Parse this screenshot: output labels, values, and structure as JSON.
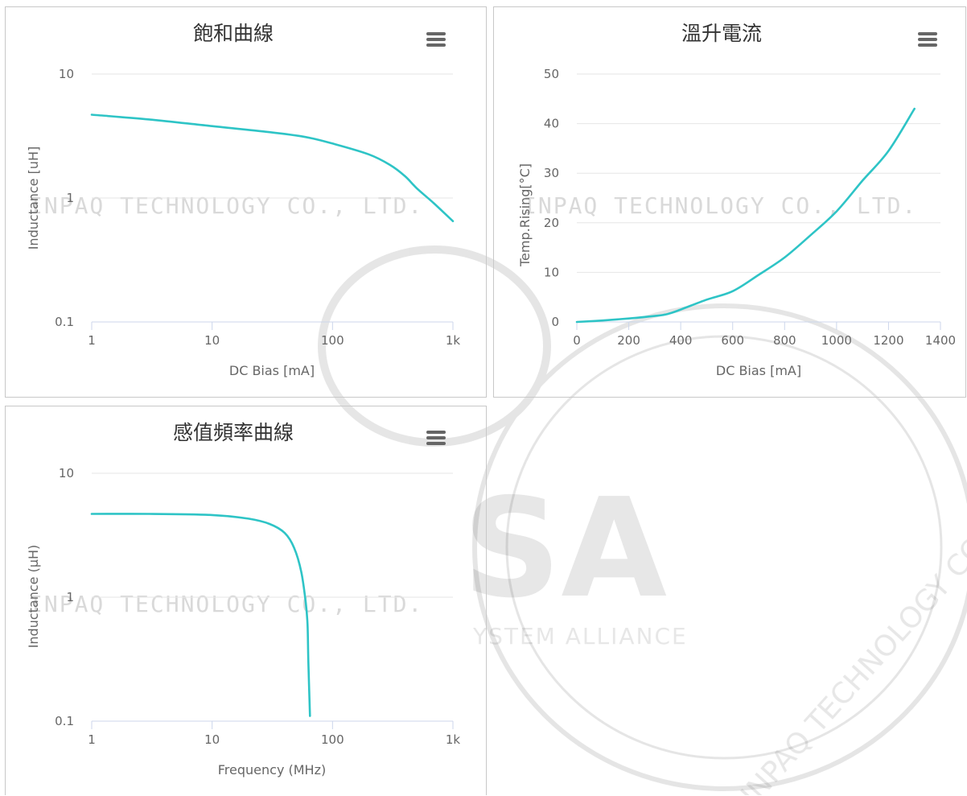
{
  "watermark": {
    "company": "INPAQ TECHNOLOGY CO., LTD.",
    "seal_text": "INPAQ TECHNOLOGY CO., LTD. ALL RIGHT RESERVED.",
    "alliance": "YSTEM ALLIANCE",
    "big_letters": "SA"
  },
  "colors": {
    "series": "#2ec4c6",
    "grid": "#e6e6e6",
    "axis": "#ccd6eb",
    "text": "#666666",
    "title": "#333333"
  },
  "menu_icon": "hamburger-menu-icon",
  "chart_data": [
    {
      "type": "line",
      "title": "飽和曲線",
      "xlabel": "DC Bias [mA]",
      "ylabel": "Inductance [uH]",
      "x_scale": "log",
      "y_scale": "log",
      "xlim": [
        1,
        1000
      ],
      "ylim": [
        0.1,
        10
      ],
      "x_ticks": [
        "1",
        "10",
        "100",
        "1k"
      ],
      "y_ticks": [
        "10",
        "1",
        "0.1"
      ],
      "grid": "horizontal",
      "series": [
        {
          "color": "#2ec4c6",
          "points": [
            [
              1,
              4.7
            ],
            [
              3,
              4.3
            ],
            [
              10,
              3.8
            ],
            [
              30,
              3.4
            ],
            [
              60,
              3.1
            ],
            [
              100,
              2.75
            ],
            [
              200,
              2.25
            ],
            [
              300,
              1.85
            ],
            [
              400,
              1.5
            ],
            [
              500,
              1.2
            ],
            [
              700,
              0.9
            ],
            [
              1000,
              0.65
            ]
          ]
        }
      ]
    },
    {
      "type": "line",
      "title": "溫升電流",
      "xlabel": "DC Bias [mA]",
      "ylabel": "Temp.Rising[°C]",
      "x_scale": "linear",
      "y_scale": "linear",
      "xlim": [
        0,
        1400
      ],
      "ylim": [
        0,
        50
      ],
      "x_ticks": [
        "0",
        "200",
        "400",
        "600",
        "800",
        "1000",
        "1200",
        "1400"
      ],
      "y_ticks": [
        "50",
        "40",
        "30",
        "20",
        "10",
        "0"
      ],
      "grid": "horizontal",
      "series": [
        {
          "color": "#2ec4c6",
          "points": [
            [
              0,
              0
            ],
            [
              100,
              0.3
            ],
            [
              200,
              0.7
            ],
            [
              300,
              1.2
            ],
            [
              350,
              1.6
            ],
            [
              400,
              2.5
            ],
            [
              500,
              4.5
            ],
            [
              600,
              6.2
            ],
            [
              700,
              9.5
            ],
            [
              800,
              13
            ],
            [
              900,
              17.5
            ],
            [
              1000,
              22.3
            ],
            [
              1100,
              28.5
            ],
            [
              1200,
              34.5
            ],
            [
              1300,
              43
            ]
          ]
        }
      ]
    },
    {
      "type": "line",
      "title": "感值頻率曲線",
      "xlabel": "Frequency (MHz)",
      "ylabel": "Inductance (µH)",
      "x_scale": "log",
      "y_scale": "log",
      "xlim": [
        1,
        1000
      ],
      "ylim": [
        0.1,
        10
      ],
      "x_ticks": [
        "1",
        "10",
        "100",
        "1k"
      ],
      "y_ticks": [
        "10",
        "1",
        "0.1"
      ],
      "grid": "horizontal",
      "series": [
        {
          "color": "#2ec4c6",
          "points": [
            [
              1,
              4.7
            ],
            [
              3,
              4.7
            ],
            [
              10,
              4.6
            ],
            [
              20,
              4.3
            ],
            [
              30,
              3.9
            ],
            [
              40,
              3.3
            ],
            [
              48,
              2.5
            ],
            [
              55,
              1.6
            ],
            [
              60,
              0.9
            ],
            [
              62,
              0.6
            ],
            [
              63,
              0.3
            ],
            [
              65,
              0.11
            ]
          ]
        }
      ]
    }
  ]
}
